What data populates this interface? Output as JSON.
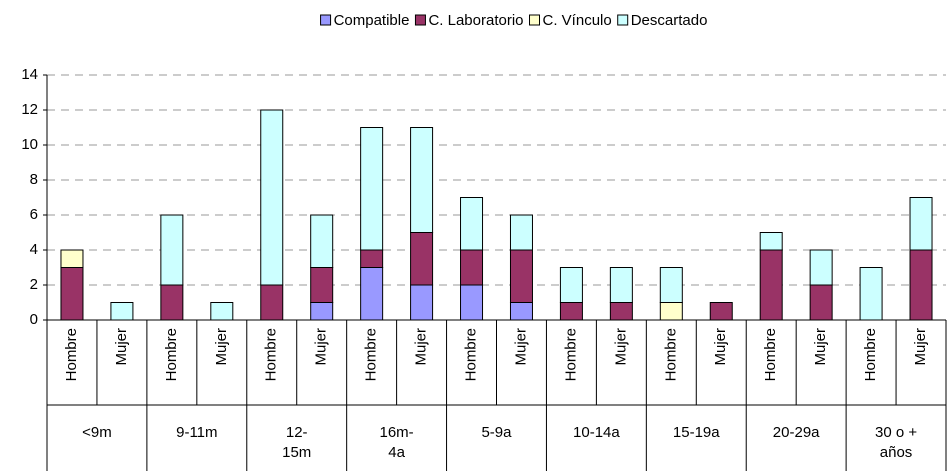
{
  "chart_data": {
    "type": "stacked_bar",
    "categories": [
      "Hombre",
      "Mujer",
      "Hombre",
      "Mujer",
      "Hombre",
      "Mujer",
      "Hombre",
      "Mujer",
      "Hombre",
      "Mujer",
      "Hombre",
      "Mujer",
      "Hombre",
      "Mujer",
      "Hombre",
      "Mujer",
      "Hombre",
      "Mujer"
    ],
    "groups": [
      "<9m",
      "9-11m",
      "12-15m",
      "16m-4a",
      "5-9a",
      "10-14a",
      "15-19a",
      "20-29a",
      "30 o + años"
    ],
    "series": [
      {
        "name": "Compatible",
        "color": "#9999ff",
        "values": [
          0,
          0,
          0,
          0,
          0,
          1,
          3,
          2,
          2,
          1,
          0,
          0,
          0,
          0,
          0,
          0,
          0,
          0
        ]
      },
      {
        "name": "C. Laboratorio",
        "color": "#993366",
        "values": [
          3,
          0,
          2,
          0,
          2,
          2,
          1,
          3,
          2,
          3,
          1,
          1,
          0,
          1,
          4,
          2,
          0,
          4
        ]
      },
      {
        "name": "C. Vínculo",
        "color": "#ffffcc",
        "values": [
          1,
          0,
          0,
          0,
          0,
          0,
          0,
          0,
          0,
          0,
          0,
          0,
          1,
          0,
          0,
          0,
          0,
          0
        ]
      },
      {
        "name": "Descartado",
        "color": "#ccffff",
        "values": [
          0,
          1,
          4,
          1,
          10,
          3,
          7,
          6,
          3,
          2,
          2,
          2,
          2,
          0,
          1,
          2,
          3,
          3
        ]
      }
    ],
    "ylim": [
      0,
      14
    ],
    "yticks": [
      0,
      2,
      4,
      6,
      8,
      10,
      12,
      14
    ],
    "grid": true
  }
}
